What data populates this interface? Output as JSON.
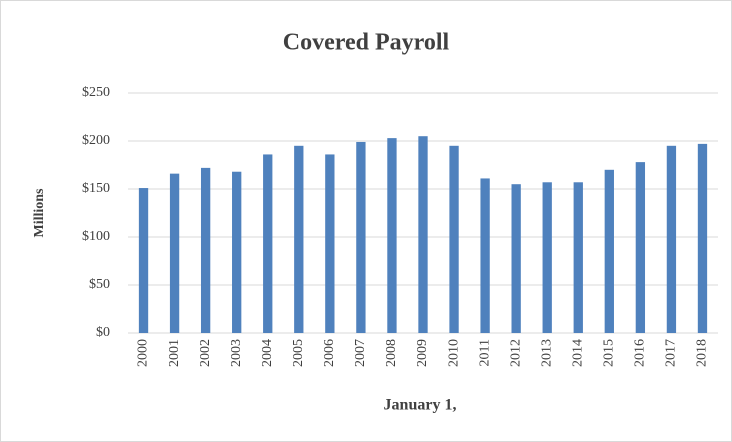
{
  "chart_data": {
    "type": "bar",
    "title": "Covered Payroll",
    "ylabel": "Millions",
    "xlabel": "January 1,",
    "categories": [
      "2000",
      "2001",
      "2002",
      "2003",
      "2004",
      "2005",
      "2006",
      "2007",
      "2008",
      "2009",
      "2010",
      "2011",
      "2012",
      "2013",
      "2014",
      "2015",
      "2016",
      "2017",
      "2018"
    ],
    "values": [
      151,
      166,
      172,
      168,
      186,
      195,
      186,
      199,
      203,
      205,
      195,
      161,
      155,
      157,
      157,
      170,
      178,
      195,
      197
    ],
    "color": "#4f81bd",
    "ylim": [
      0,
      250
    ],
    "yticks": [
      {
        "value": 0,
        "label": "$0"
      },
      {
        "value": 50,
        "label": "$50"
      },
      {
        "value": 100,
        "label": "$100"
      },
      {
        "value": 150,
        "label": "$150"
      },
      {
        "value": 200,
        "label": "$200"
      },
      {
        "value": 250,
        "label": "$250"
      }
    ],
    "grid": true
  }
}
